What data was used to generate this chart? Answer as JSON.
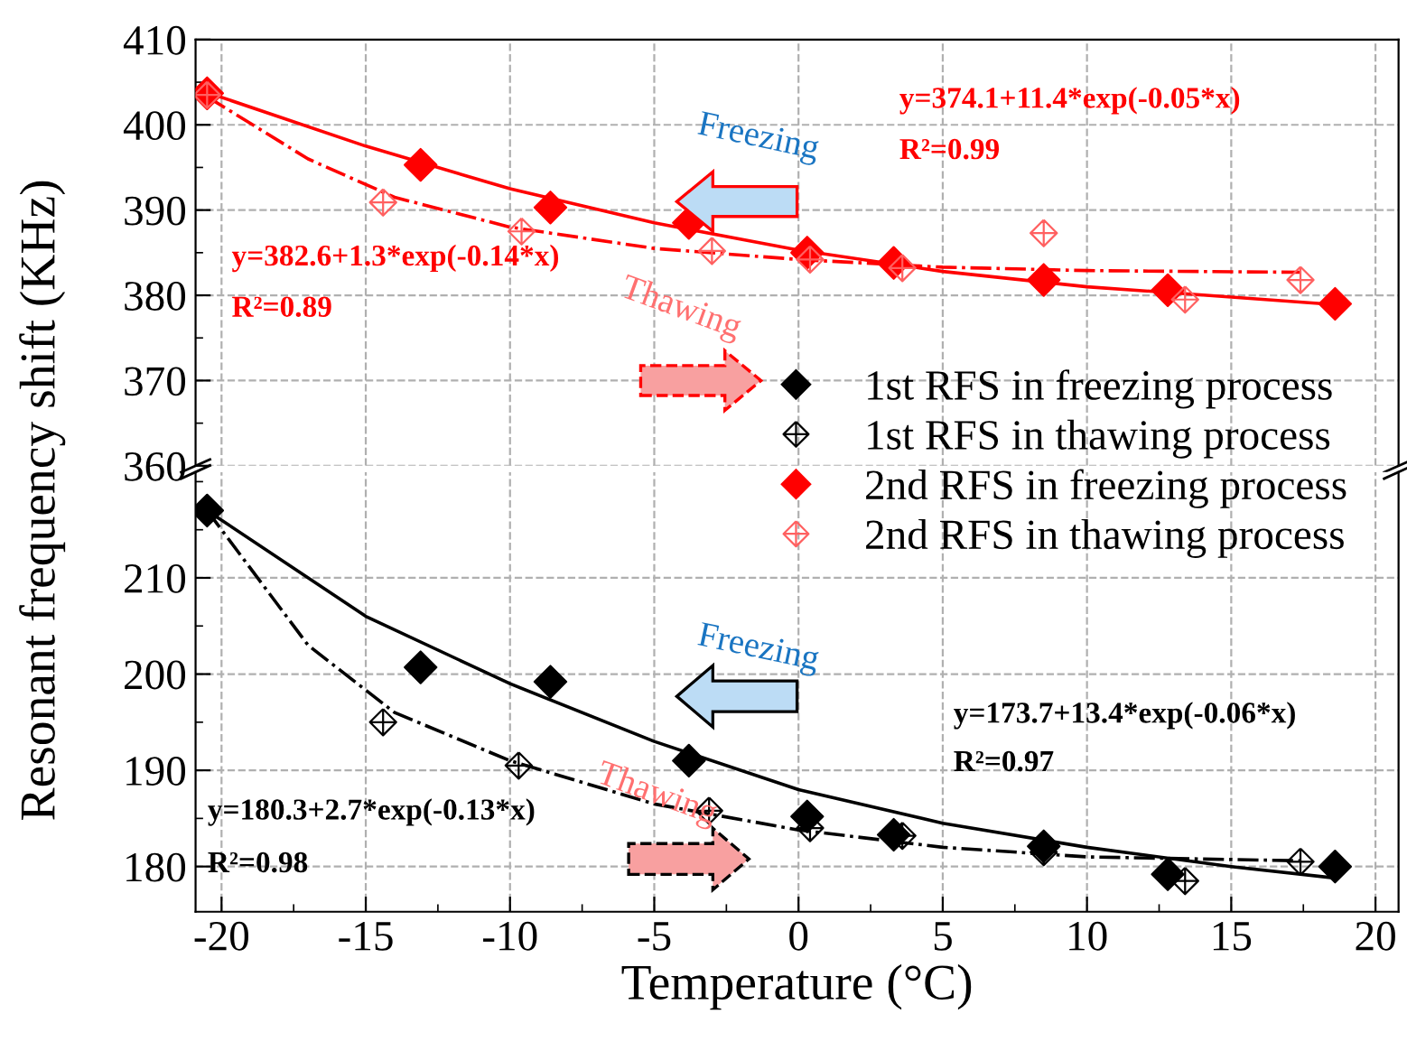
{
  "chart_data": [
    {
      "type": "scatter",
      "ylabel": "Resonant frequency shift (KHz)",
      "xlim": [
        -20.9,
        20.8
      ],
      "ylim": [
        360,
        410
      ],
      "yticks": [
        360,
        370,
        380,
        390,
        400,
        410
      ],
      "xticks": [
        -20,
        -15,
        -10,
        -5,
        0,
        5,
        10,
        15,
        20
      ],
      "tick_labels": "y",
      "grid": true,
      "legend": "bottom right",
      "series": [
        {
          "name": "2nd RFS in freezing process",
          "color": "#ff0000",
          "marker": "diamond",
          "x": [
            -20.5,
            -13.1,
            -8.6,
            -3.8,
            0.3,
            3.3,
            8.5,
            12.8,
            18.6
          ],
          "values": [
            403.7,
            395.3,
            390.3,
            388.5,
            385.0,
            383.8,
            381.8,
            380.6,
            379.0
          ]
        },
        {
          "name": "2nd RFS in thawing process",
          "color": "#ff6060",
          "marker": "cross",
          "x": [
            -20.5,
            -14.4,
            -9.6,
            -3.0,
            0.4,
            3.6,
            8.5,
            13.4,
            17.4
          ],
          "values": [
            403.5,
            390.9,
            387.5,
            385.2,
            384.2,
            383.2,
            387.3,
            379.5,
            381.8
          ]
        },
        {
          "type": "line",
          "color": "#ff0000",
          "line_style": "solid",
          "x": [
            -20.5,
            -15,
            -10,
            -5,
            0,
            5,
            10,
            15,
            18.6
          ],
          "values": [
            403.8,
            397.5,
            392.5,
            388.5,
            385.3,
            382.8,
            381.0,
            379.8,
            378.9
          ]
        },
        {
          "type": "line",
          "color": "#ff0000",
          "line_style": "dashdot",
          "x": [
            -20.5,
            -17,
            -14,
            -10,
            -5,
            0,
            5,
            10,
            17.4
          ],
          "values": [
            403.3,
            396.0,
            391.5,
            388.0,
            385.5,
            384.2,
            383.3,
            382.9,
            382.7
          ]
        }
      ],
      "annotations": [
        "y=374.1+11.4*exp(-0.05*x)",
        "R²=0.99",
        "y=382.6+1.3*exp(-0.14*x)",
        "R²=0.89",
        "Freezing",
        "Thawing"
      ]
    },
    {
      "type": "scatter",
      "xlabel": "Temperature (°C)",
      "xlim": [
        -20.9,
        20.8
      ],
      "ylim": [
        175.3,
        221
      ],
      "yticks": [
        180,
        190,
        200,
        210
      ],
      "xticks": [
        -20,
        -15,
        -10,
        -5,
        0,
        5,
        10,
        15,
        20
      ],
      "grid": true,
      "legend": "top right",
      "series": [
        {
          "name": "1st RFS in freezing process",
          "color": "#000000",
          "marker": "diamond",
          "x": [
            -20.5,
            -13.1,
            -8.6,
            -3.8,
            0.3,
            3.3,
            8.5,
            12.8,
            18.6
          ],
          "values": [
            217.0,
            200.7,
            199.2,
            191.0,
            185.2,
            183.3,
            182.1,
            179.2,
            180.0
          ]
        },
        {
          "name": "1st RFS in thawing process",
          "color": "#000000",
          "marker": "cross",
          "x": [
            -14.4,
            -9.7,
            -3.1,
            0.4,
            3.6,
            8.5,
            13.4,
            17.4
          ],
          "values": [
            195.0,
            190.5,
            185.8,
            184.0,
            183.2,
            181.5,
            178.5,
            180.5
          ]
        },
        {
          "type": "line",
          "color": "#000000",
          "line_style": "solid",
          "x": [
            -20.5,
            -15,
            -10,
            -5,
            0,
            5,
            10,
            15,
            18.6
          ],
          "values": [
            217.0,
            206.0,
            199.0,
            193.0,
            188.0,
            184.5,
            182.0,
            180.0,
            178.8
          ]
        },
        {
          "type": "line",
          "color": "#000000",
          "line_style": "dashdot",
          "x": [
            -20.5,
            -17,
            -14,
            -10,
            -5,
            0,
            5,
            10,
            17.4
          ],
          "values": [
            217.0,
            203.0,
            196.0,
            191.0,
            186.5,
            183.8,
            182.0,
            181.0,
            180.6
          ]
        }
      ],
      "annotations": [
        "y=173.7+13.4*exp(-0.06*x)",
        "R²=0.97",
        "y=180.3+2.7*exp(-0.13*x)",
        "R²=0.98",
        "Freezing",
        "Thawing"
      ]
    }
  ]
}
